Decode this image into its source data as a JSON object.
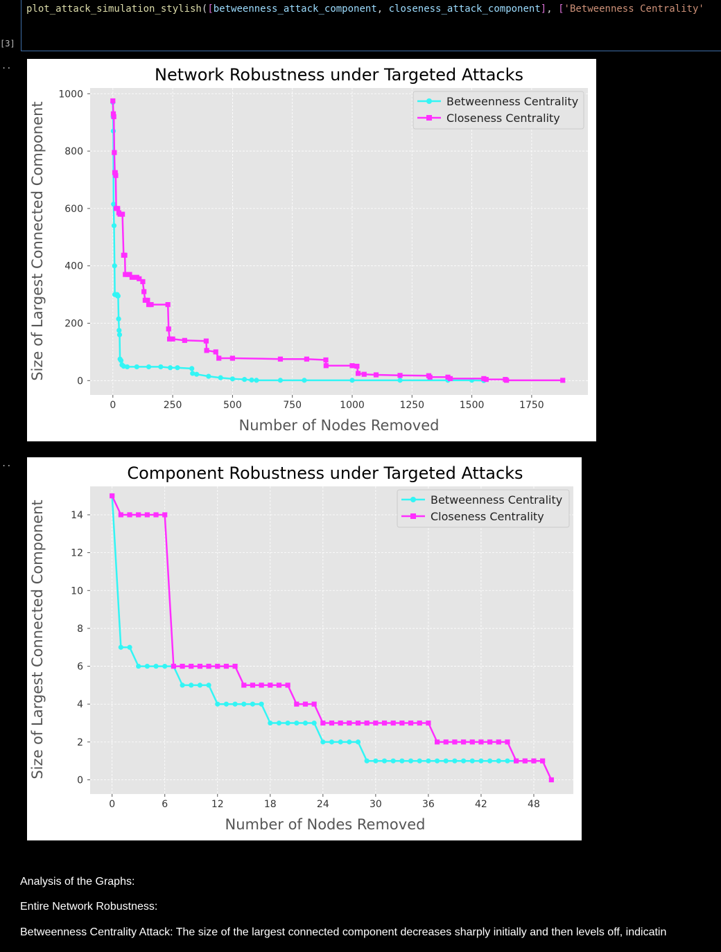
{
  "code_cell": {
    "execution_count": "[3]",
    "code_parts": [
      {
        "text": "plot_attack_simulation_stylish",
        "cls": "tok-fn"
      },
      {
        "text": "(",
        "cls": ""
      },
      {
        "text": "[",
        "cls": "tok-br"
      },
      {
        "text": "betweenness_attack_component",
        "cls": "tok-var"
      },
      {
        "text": ", ",
        "cls": ""
      },
      {
        "text": "closeness_attack_component",
        "cls": "tok-var"
      },
      {
        "text": "]",
        "cls": "tok-br"
      },
      {
        "text": ", ",
        "cls": ""
      },
      {
        "text": "[",
        "cls": "tok-br"
      },
      {
        "text": "'Betweenness Centrality'",
        "cls": "tok-str"
      }
    ]
  },
  "output_prompts": [
    "..",
    ".."
  ],
  "colors": {
    "betweenness": "#33f5f5",
    "closeness": "#ff2eff",
    "plot_bg": "#e5e5e5",
    "grid": "#ffffff"
  },
  "chart_data": [
    {
      "type": "line",
      "title": "Network Robustness under Targeted Attacks",
      "xlabel": "Number of Nodes Removed",
      "ylabel": "Size of Largest Connected Component",
      "xlim": [
        -95,
        1985
      ],
      "ylim": [
        -50,
        1020
      ],
      "xticks": [
        0,
        250,
        500,
        750,
        1000,
        1250,
        1500,
        1750
      ],
      "yticks": [
        0,
        200,
        400,
        600,
        800,
        1000
      ],
      "legend": "top-right",
      "grid": true,
      "series": [
        {
          "name": "Betweenness Centrality",
          "marker": "circle",
          "points": [
            [
              0,
              970
            ],
            [
              1,
              920
            ],
            [
              2,
              870
            ],
            [
              3,
              615
            ],
            [
              5,
              540
            ],
            [
              7,
              400
            ],
            [
              8,
              300
            ],
            [
              10,
              300
            ],
            [
              12,
              300
            ],
            [
              18,
              300
            ],
            [
              20,
              295
            ],
            [
              22,
              295
            ],
            [
              24,
              215
            ],
            [
              26,
              175
            ],
            [
              28,
              160
            ],
            [
              30,
              75
            ],
            [
              34,
              70
            ],
            [
              38,
              55
            ],
            [
              45,
              50
            ],
            [
              60,
              48
            ],
            [
              100,
              48
            ],
            [
              150,
              48
            ],
            [
              200,
              48
            ],
            [
              240,
              45
            ],
            [
              270,
              45
            ],
            [
              330,
              42
            ],
            [
              333,
              25
            ],
            [
              350,
              22
            ],
            [
              400,
              15
            ],
            [
              450,
              10
            ],
            [
              500,
              6
            ],
            [
              550,
              4
            ],
            [
              580,
              2
            ],
            [
              600,
              1
            ],
            [
              700,
              1
            ],
            [
              800,
              1
            ],
            [
              1000,
              1
            ],
            [
              1200,
              1
            ],
            [
              1400,
              1
            ],
            [
              1500,
              1
            ],
            [
              1550,
              0
            ]
          ]
        },
        {
          "name": "Closeness Centrality",
          "marker": "square",
          "points": [
            [
              0,
              975
            ],
            [
              2,
              930
            ],
            [
              4,
              920
            ],
            [
              6,
              795
            ],
            [
              8,
              725
            ],
            [
              10,
              725
            ],
            [
              12,
              715
            ],
            [
              14,
              600
            ],
            [
              20,
              600
            ],
            [
              25,
              585
            ],
            [
              30,
              580
            ],
            [
              40,
              580
            ],
            [
              45,
              437
            ],
            [
              50,
              437
            ],
            [
              52,
              370
            ],
            [
              60,
              370
            ],
            [
              70,
              370
            ],
            [
              80,
              360
            ],
            [
              100,
              360
            ],
            [
              110,
              355
            ],
            [
              125,
              345
            ],
            [
              130,
              310
            ],
            [
              135,
              280
            ],
            [
              145,
              280
            ],
            [
              150,
              265
            ],
            [
              160,
              265
            ],
            [
              230,
              265
            ],
            [
              233,
              180
            ],
            [
              237,
              145
            ],
            [
              250,
              145
            ],
            [
              300,
              140
            ],
            [
              390,
              138
            ],
            [
              392,
              105
            ],
            [
              430,
              100
            ],
            [
              443,
              78
            ],
            [
              500,
              78
            ],
            [
              700,
              75
            ],
            [
              810,
              75
            ],
            [
              890,
              72
            ],
            [
              891,
              52
            ],
            [
              1000,
              52
            ],
            [
              1020,
              50
            ],
            [
              1025,
              25
            ],
            [
              1050,
              22
            ],
            [
              1100,
              20
            ],
            [
              1200,
              18
            ],
            [
              1320,
              17
            ],
            [
              1325,
              12
            ],
            [
              1400,
              12
            ],
            [
              1410,
              7
            ],
            [
              1550,
              7
            ],
            [
              1560,
              4
            ],
            [
              1640,
              4
            ],
            [
              1645,
              1
            ],
            [
              1880,
              1
            ]
          ]
        }
      ]
    },
    {
      "type": "line",
      "title": "Component Robustness under Targeted Attacks",
      "xlabel": "Number of Nodes Removed",
      "ylabel": "Size of Largest Connected Component",
      "xlim": [
        -2.5,
        52.5
      ],
      "ylim": [
        -0.75,
        15.5
      ],
      "xticks": [
        0,
        6,
        12,
        18,
        24,
        30,
        36,
        42,
        48
      ],
      "yticks": [
        0,
        2,
        4,
        6,
        8,
        10,
        12,
        14
      ],
      "legend": "top-right",
      "grid": true,
      "series": [
        {
          "name": "Betweenness Centrality",
          "marker": "circle",
          "values": [
            15,
            7,
            7,
            6,
            6,
            6,
            6,
            6,
            5,
            5,
            5,
            5,
            4,
            4,
            4,
            4,
            4,
            4,
            3,
            3,
            3,
            3,
            3,
            3,
            2,
            2,
            2,
            2,
            2,
            1,
            1,
            1,
            1,
            1,
            1,
            1,
            1,
            1,
            1,
            1,
            1,
            1,
            1,
            1,
            1,
            1,
            1,
            1,
            1
          ]
        },
        {
          "name": "Closeness Centrality",
          "marker": "square",
          "values": [
            15,
            14,
            14,
            14,
            14,
            14,
            14,
            6,
            6,
            6,
            6,
            6,
            6,
            6,
            6,
            5,
            5,
            5,
            5,
            5,
            5,
            4,
            4,
            4,
            3,
            3,
            3,
            3,
            3,
            3,
            3,
            3,
            3,
            3,
            3,
            3,
            3,
            2,
            2,
            2,
            2,
            2,
            2,
            2,
            2,
            2,
            1,
            1,
            1,
            1,
            0
          ]
        }
      ]
    }
  ],
  "analysis": {
    "heading": "Analysis of the Graphs:",
    "subheading": "Entire Network Robustness:",
    "paragraph": "Betweenness Centrality Attack: The size of the largest connected component decreases sharply initially and then levels off, indicatin"
  }
}
